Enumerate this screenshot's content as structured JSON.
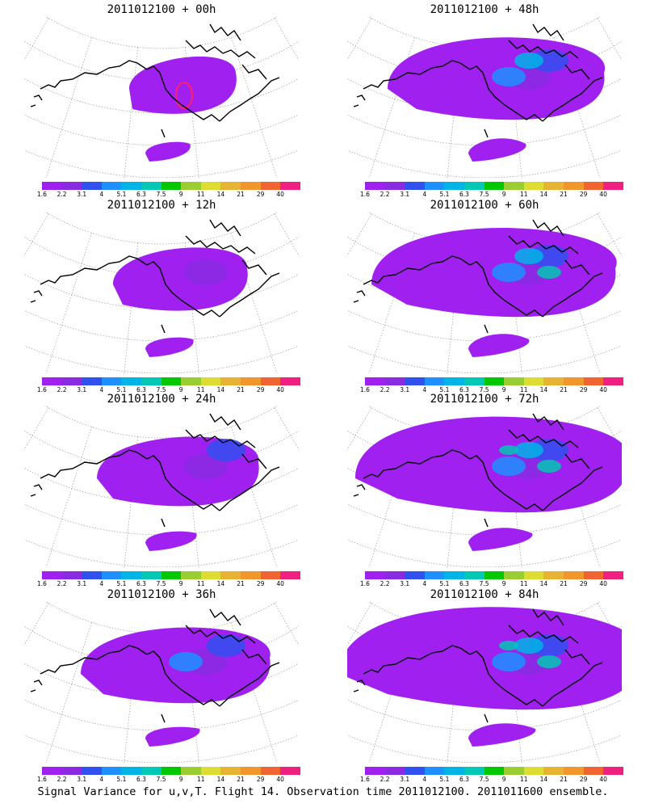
{
  "colorbar": {
    "labels": [
      "1.6",
      "2.2",
      "3.1",
      "4",
      "5.1",
      "6.3",
      "7.5",
      "9",
      "11",
      "14",
      "21",
      "29",
      "40"
    ],
    "colors": [
      "#a020f0",
      "#8a2be2",
      "#3050f0",
      "#1e90ff",
      "#00b4e6",
      "#00c8b4",
      "#00c800",
      "#9acd32",
      "#dcdc32",
      "#e6b432",
      "#f0962d",
      "#f06432",
      "#f02080"
    ]
  },
  "panels": [
    {
      "title": "2011012100 + 00h",
      "level": 0
    },
    {
      "title": "2011012100 + 48h",
      "level": 4
    },
    {
      "title": "2011012100 + 12h",
      "level": 1
    },
    {
      "title": "2011012100 + 60h",
      "level": 5
    },
    {
      "title": "2011012100 + 24h",
      "level": 2
    },
    {
      "title": "2011012100 + 72h",
      "level": 6
    },
    {
      "title": "2011012100 + 36h",
      "level": 3
    },
    {
      "title": "2011012100 + 84h",
      "level": 7
    }
  ],
  "caption": "Signal Variance for u,v,T. Flight 14. Observation time 2011012100. 2011011600 ensemble."
}
